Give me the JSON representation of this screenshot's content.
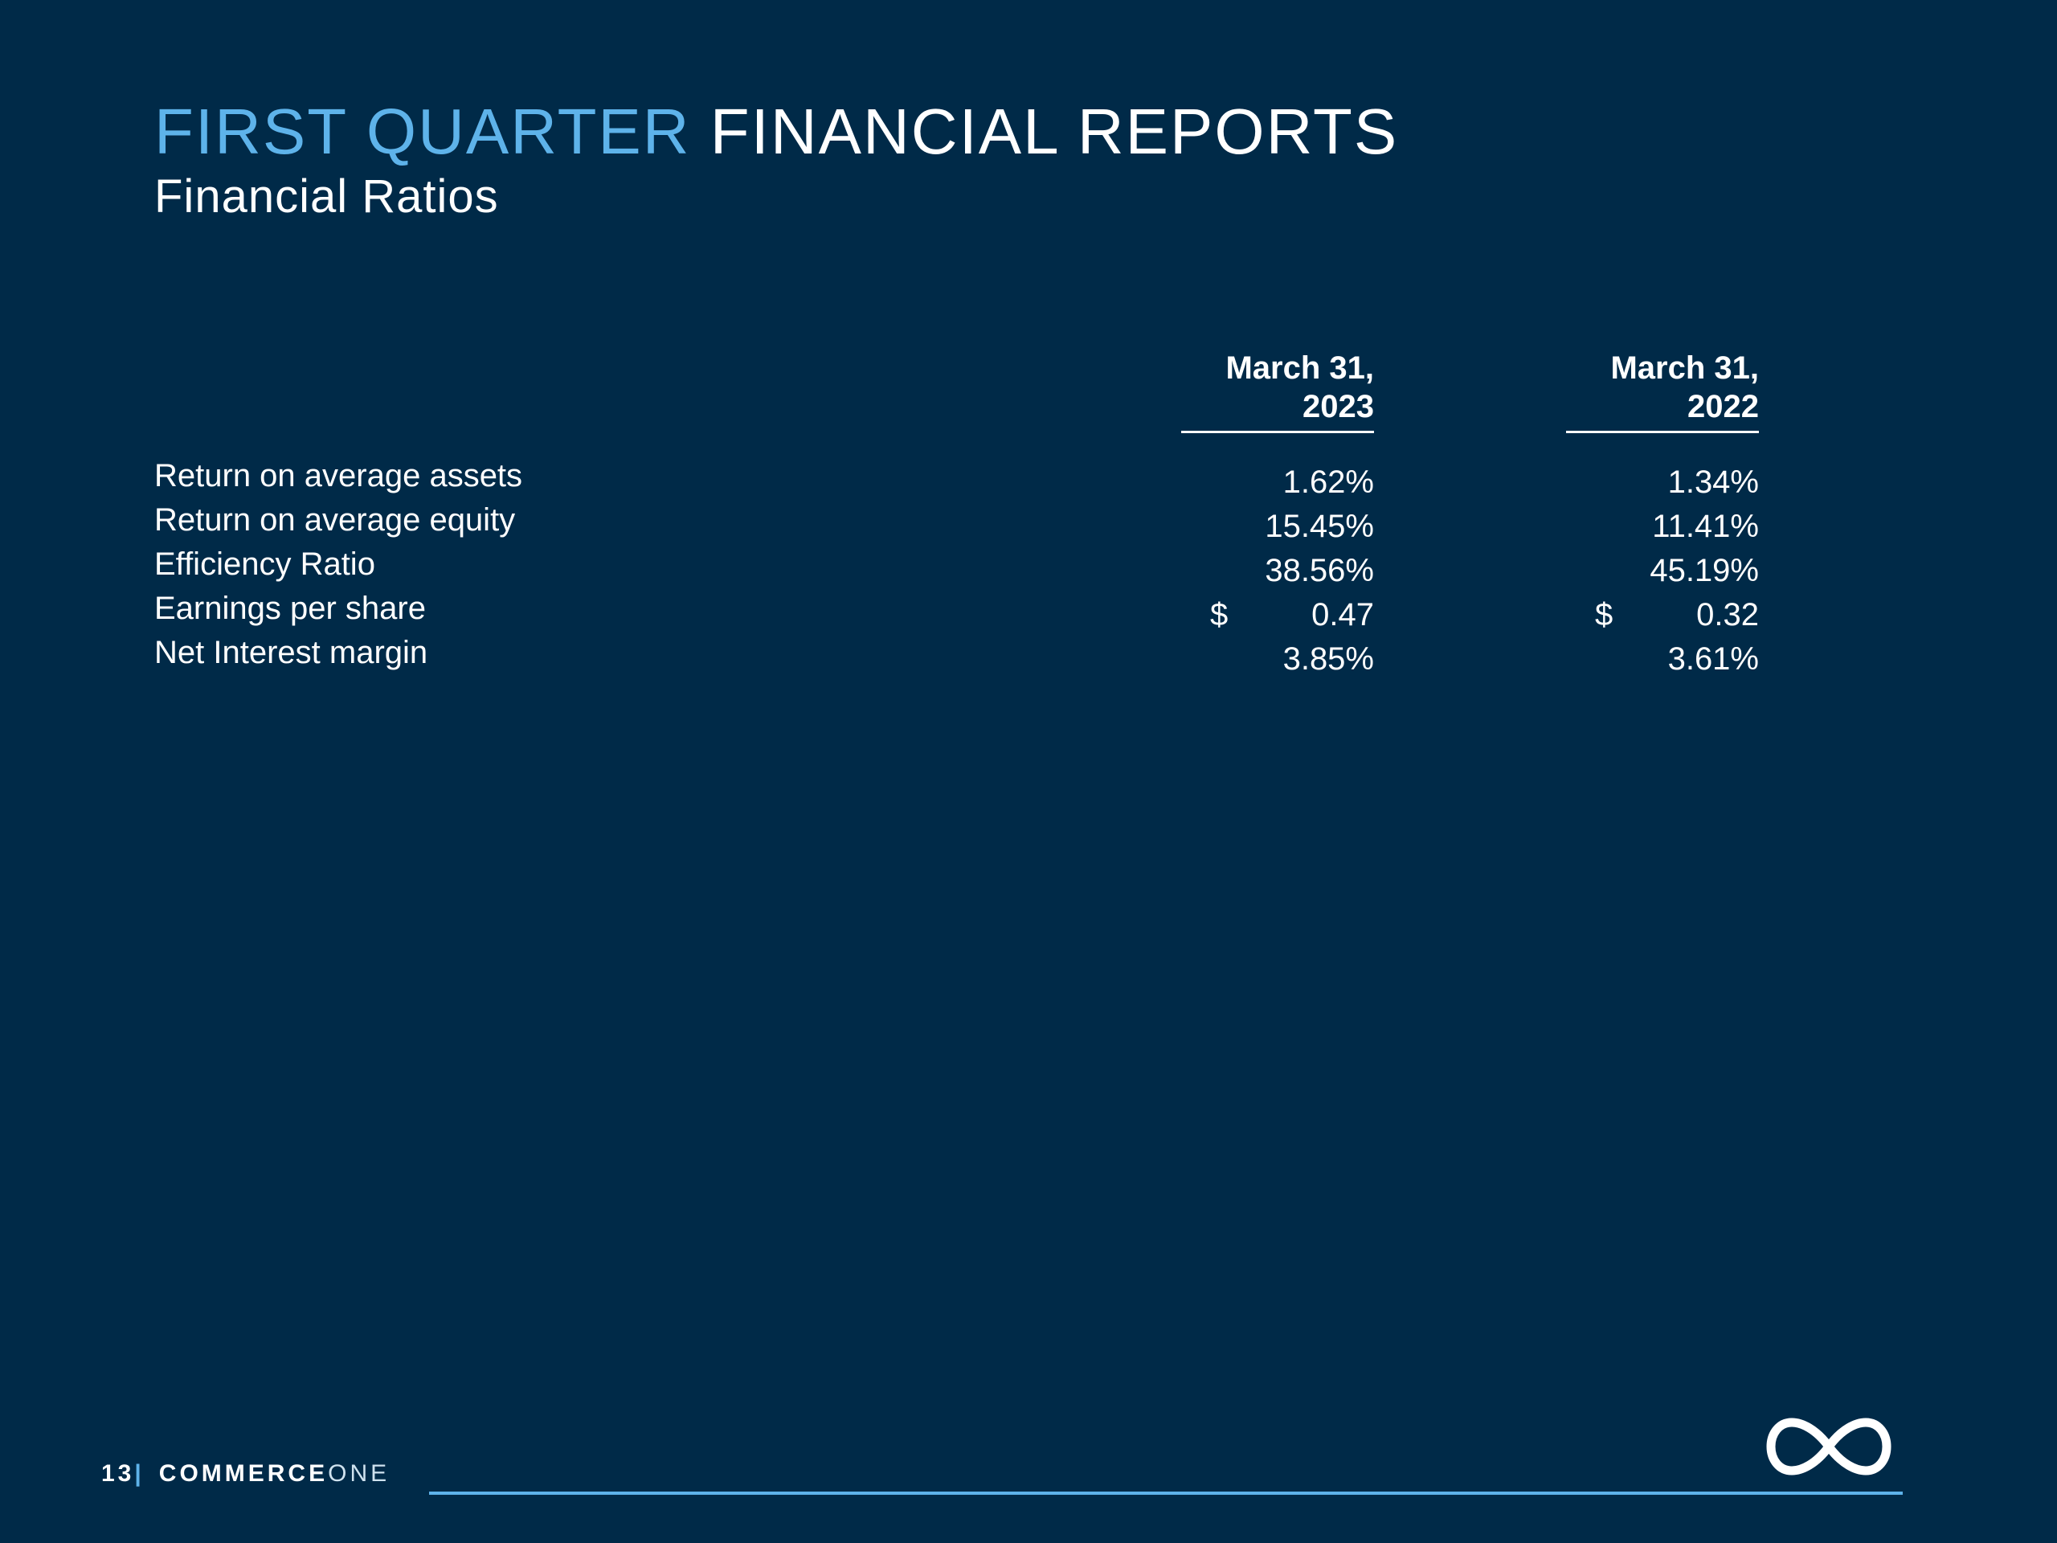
{
  "title": {
    "accent": "FIRST QUARTER",
    "rest": "FINANCIAL REPORTS"
  },
  "subtitle": "Financial Ratios",
  "table": {
    "columns": [
      {
        "line1": "March 31,",
        "line2": "2023"
      },
      {
        "line1": "March 31,",
        "line2": "2022"
      }
    ],
    "rows": [
      {
        "label": "Return on average assets",
        "values": [
          {
            "currency": "",
            "value": "1.62%"
          },
          {
            "currency": "",
            "value": "1.34%"
          }
        ]
      },
      {
        "label": "Return on average equity",
        "values": [
          {
            "currency": "",
            "value": "15.45%"
          },
          {
            "currency": "",
            "value": "11.41%"
          }
        ]
      },
      {
        "label": "Efficiency Ratio",
        "values": [
          {
            "currency": "",
            "value": "38.56%"
          },
          {
            "currency": "",
            "value": "45.19%"
          }
        ]
      },
      {
        "label": "Earnings per share",
        "values": [
          {
            "currency": "$",
            "value": "0.47"
          },
          {
            "currency": "$",
            "value": "0.32"
          }
        ]
      },
      {
        "label": "Net Interest margin",
        "values": [
          {
            "currency": "",
            "value": "3.85%"
          },
          {
            "currency": "",
            "value": "3.61%"
          }
        ]
      }
    ]
  },
  "footer": {
    "page_number": "13",
    "separator": "|",
    "brand_bold": "COMMERCE",
    "brand_light": "ONE",
    "logo_icon": "infinity-logo-icon"
  },
  "colors": {
    "background": "#002a48",
    "accent": "#5eb3ea",
    "text": "#ffffff"
  }
}
